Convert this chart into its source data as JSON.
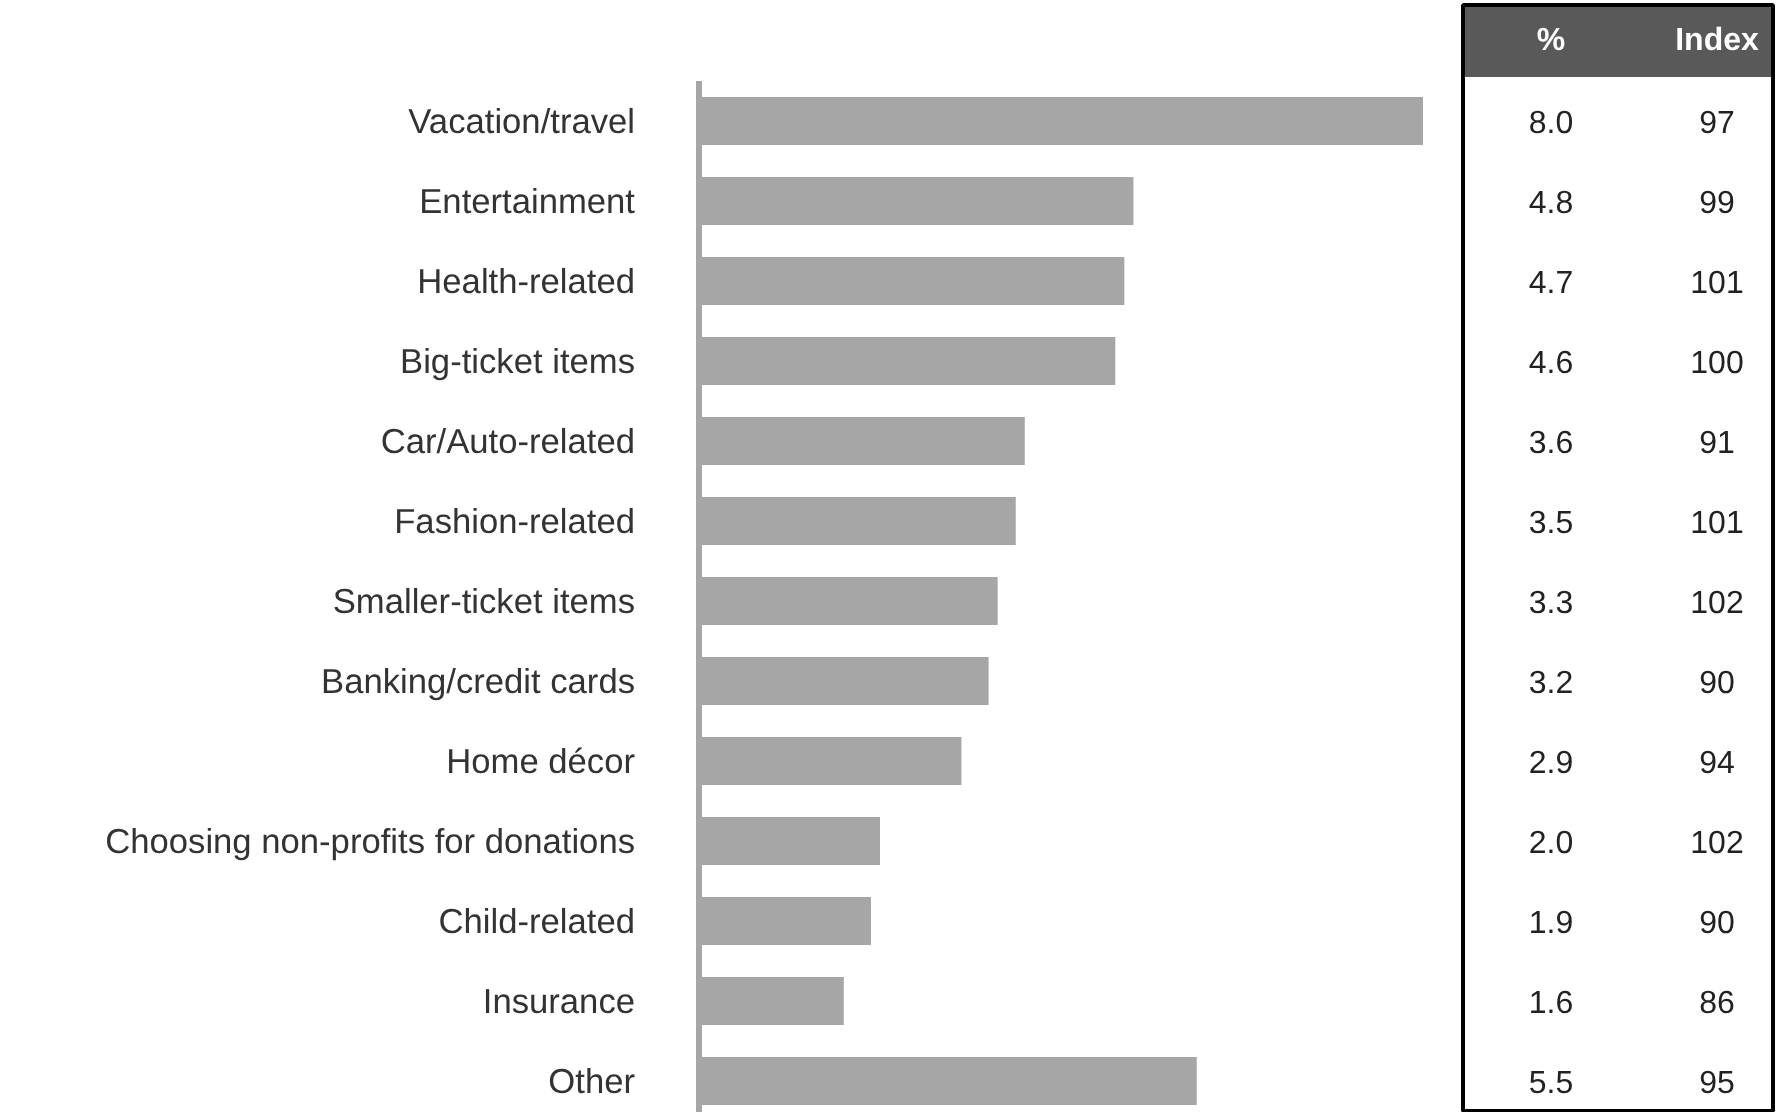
{
  "chart_data": {
    "type": "bar",
    "orientation": "horizontal",
    "categories": [
      "Vacation/travel",
      "Entertainment",
      "Health-related",
      "Big-ticket items",
      "Car/Auto-related",
      "Fashion-related",
      "Smaller-ticket items",
      "Banking/credit cards",
      "Home décor",
      "Choosing non-profits for donations",
      "Child-related",
      "Insurance",
      "Other"
    ],
    "values": [
      8.0,
      4.8,
      4.7,
      4.6,
      3.6,
      3.5,
      3.3,
      3.2,
      2.9,
      2.0,
      1.9,
      1.6,
      5.5
    ],
    "value_labels": [
      "8.0",
      "4.8",
      "4.7",
      "4.6",
      "3.6",
      "3.5",
      "3.3",
      "3.2",
      "2.9",
      "2.0",
      "1.9",
      "1.6",
      "5.5"
    ],
    "color": "#a6a6a6",
    "annotations": [
      "%",
      "Index",
      "97",
      "99",
      "101",
      "100",
      "91",
      "101",
      "102",
      "90",
      "94",
      "102",
      "90",
      "86",
      "95"
    ]
  }
}
